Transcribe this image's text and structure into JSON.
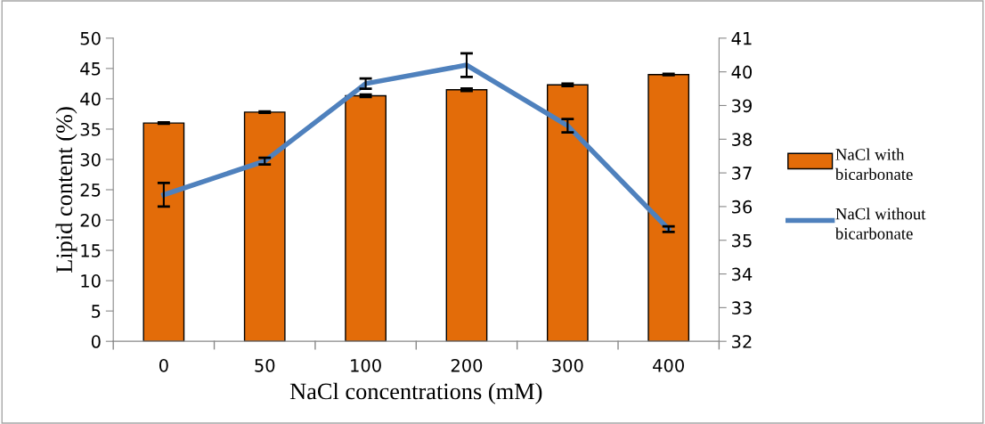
{
  "chart_data": {
    "type": "bar",
    "xlabel": "NaCl concentrations (mM)",
    "ylabel": "Lipid content (%)",
    "categories": [
      "0",
      "50",
      "100",
      "200",
      "300",
      "400"
    ],
    "series": [
      {
        "name": "NaCl with bicarbonate",
        "color": "#e36c09",
        "values": [
          36,
          37.8,
          40.5,
          41.5,
          42.3,
          44
        ],
        "errors": [
          0.1,
          0.1,
          0.2,
          0.2,
          0.2,
          0.1
        ]
      },
      {
        "name": "NaCl without bicarbonate",
        "type": "line",
        "axis": "y2",
        "color": "#4f81bd",
        "values": [
          36.35,
          37.35,
          39.65,
          40.2,
          38.4,
          35.33
        ],
        "errors": [
          0.35,
          0.1,
          0.15,
          0.35,
          0.2,
          0.08
        ]
      }
    ],
    "ylim": [
      0,
      50
    ],
    "yticks": [
      0,
      5,
      10,
      15,
      20,
      25,
      30,
      35,
      40,
      45,
      50
    ],
    "y2lim": [
      32,
      41
    ],
    "y2ticks": [
      32,
      33,
      34,
      35,
      36,
      37,
      38,
      39,
      40,
      41
    ],
    "legend": "right",
    "grid": false,
    "marker": "none",
    "line_style": "solid"
  }
}
